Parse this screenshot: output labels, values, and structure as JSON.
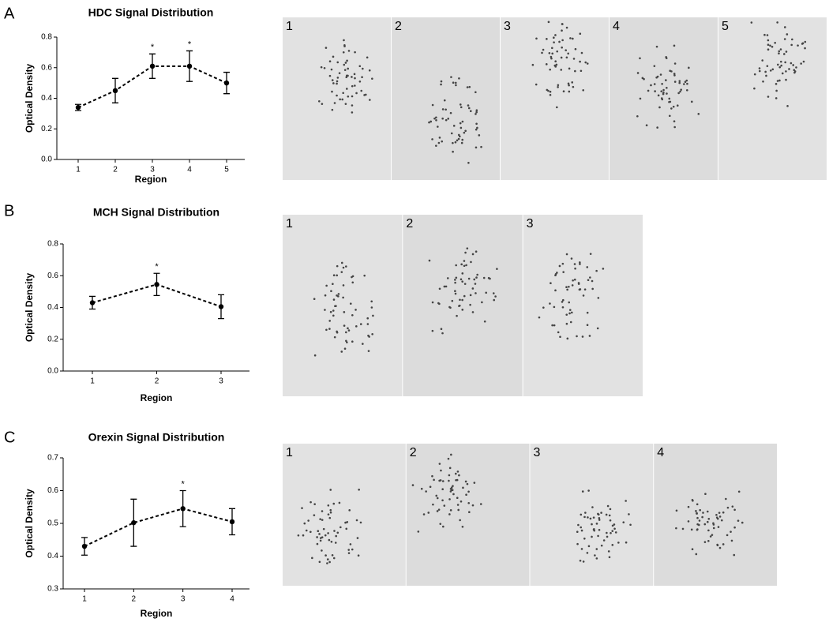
{
  "figure": {
    "panels": [
      {
        "letter": "A",
        "image_labels": [
          "1",
          "2",
          "3",
          "4",
          "5"
        ]
      },
      {
        "letter": "B",
        "image_labels": [
          "1",
          "2",
          "3"
        ]
      },
      {
        "letter": "C",
        "image_labels": [
          "1",
          "2",
          "3",
          "4"
        ]
      }
    ]
  },
  "chart_data": [
    {
      "type": "line",
      "title": "HDC Signal Distribution",
      "xlabel": "Region",
      "ylabel": "Optical Density",
      "categories": [
        "1",
        "2",
        "3",
        "4",
        "5"
      ],
      "values": [
        0.34,
        0.45,
        0.61,
        0.61,
        0.5
      ],
      "errors": [
        0.02,
        0.08,
        0.08,
        0.1,
        0.07
      ],
      "significance": [
        null,
        null,
        "*",
        "*",
        null
      ],
      "color": "#000000",
      "ylim": [
        0,
        0.8
      ],
      "yticks": [
        {
          "value": 0,
          "label": "0.0"
        },
        0.2,
        0.4,
        0.6,
        0.8
      ]
    },
    {
      "type": "line",
      "title": "MCH Signal Distribution",
      "xlabel": "Region",
      "ylabel": "Optical Density",
      "categories": [
        "1",
        "2",
        "3"
      ],
      "values": [
        0.43,
        0.545,
        0.405
      ],
      "errors": [
        0.04,
        0.07,
        0.075
      ],
      "significance": [
        null,
        "*",
        null
      ],
      "color": "#000000",
      "ylim": [
        0,
        0.8
      ],
      "yticks": [
        {
          "value": 0,
          "label": "0.0"
        },
        0.2,
        0.4,
        0.6,
        0.8
      ]
    },
    {
      "type": "line",
      "title": "Orexin Signal Distribution",
      "xlabel": "Region",
      "ylabel": "Optical Density",
      "categories": [
        "1",
        "2",
        "3",
        "4"
      ],
      "values": [
        0.43,
        0.502,
        0.545,
        0.505
      ],
      "errors": [
        0.027,
        0.072,
        0.055,
        0.04
      ],
      "significance": [
        null,
        null,
        "*",
        null
      ],
      "color": "#000000",
      "ylim": [
        0.3,
        0.7
      ],
      "yticks": [
        0.3,
        0.4,
        0.5,
        0.6,
        0.7
      ]
    }
  ]
}
